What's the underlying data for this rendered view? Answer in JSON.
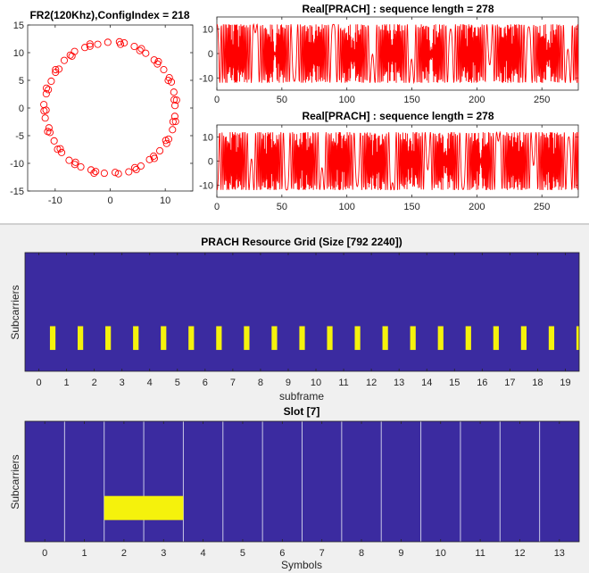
{
  "chart_data": [
    {
      "type": "scatter",
      "title": "FR2(120Khz),ConfigIndex = 218",
      "xlabel": "",
      "ylabel": "",
      "xlim": [
        -15,
        15
      ],
      "ylim": [
        -15,
        15
      ],
      "xticks": [
        "-10",
        "0",
        "10"
      ],
      "yticks": [
        "15",
        "10",
        "5",
        "0",
        "-5",
        "-10",
        "-15"
      ],
      "marker": "circle-open",
      "color": "#ff0000",
      "radius": 11.9,
      "point_count": 72,
      "angle_jitter_deg": 3
    },
    {
      "type": "line",
      "title": "Real[PRACH] : sequence length = 278",
      "xlabel": "",
      "ylabel": "",
      "xlim": [
        0,
        278
      ],
      "ylim": [
        -15,
        15
      ],
      "xticks": [
        "0",
        "50",
        "100",
        "150",
        "200",
        "250"
      ],
      "yticks": [
        "10",
        "0",
        "-10"
      ],
      "color": "#ff0000",
      "amplitude": 12,
      "chirp_root": 37,
      "chirp_phase_deg": 0
    },
    {
      "type": "line",
      "title": "Real[PRACH] : sequence length = 278",
      "xlabel": "",
      "ylabel": "",
      "xlim": [
        0,
        278
      ],
      "ylim": [
        -15,
        15
      ],
      "xticks": [
        "0",
        "50",
        "100",
        "150",
        "200",
        "250"
      ],
      "yticks": [
        "10",
        "0",
        "-10"
      ],
      "color": "#ff0000",
      "amplitude": 12,
      "chirp_root": 41,
      "chirp_phase_deg": 180
    },
    {
      "type": "heatmap",
      "title": "PRACH Resource Grid (Size [792 2240])",
      "xlabel": "subframe",
      "ylabel": "Subcarriers",
      "xlim": [
        -0.5,
        19.5
      ],
      "xticks": [
        "0",
        "1",
        "2",
        "3",
        "4",
        "5",
        "6",
        "7",
        "8",
        "9",
        "10",
        "11",
        "12",
        "13",
        "14",
        "15",
        "16",
        "17",
        "18",
        "19"
      ],
      "background_color": "#3b2ba0",
      "occupied_color": "#f5f20c",
      "occupied": {
        "x_start": [
          0.4,
          1.4,
          2.4,
          3.4,
          4.4,
          5.4,
          6.4,
          7.4,
          8.4,
          9.4,
          10.4,
          11.4,
          12.4,
          13.4,
          14.4,
          15.4,
          16.4,
          17.4,
          18.4,
          19.4
        ],
        "width": 0.2,
        "subcarrier_fraction": [
          0.18,
          0.38
        ]
      }
    },
    {
      "type": "heatmap",
      "title": "Slot [7]",
      "xlabel": "Symbols",
      "ylabel": "Subcarriers",
      "xlim": [
        -0.5,
        13.5
      ],
      "xticks": [
        "0",
        "1",
        "2",
        "3",
        "4",
        "5",
        "6",
        "7",
        "8",
        "9",
        "10",
        "11",
        "12",
        "13"
      ],
      "background_color": "#3b2ba0",
      "occupied_color": "#f5f20c",
      "symbol_boundary_color": "#c8c8e6",
      "symbol_boundaries": [
        0.5,
        1.5,
        2.5,
        3.5,
        4.5,
        5.5,
        6.5,
        7.5,
        8.5,
        9.5,
        10.5,
        11.5,
        12.5
      ],
      "occupied": {
        "x_start": 1.5,
        "x_end": 3.5,
        "subcarrier_fraction": [
          0.18,
          0.38
        ]
      }
    }
  ],
  "figure": {
    "background_bottom": "#f0f0f0",
    "separator_color": "#a0a0a0"
  }
}
